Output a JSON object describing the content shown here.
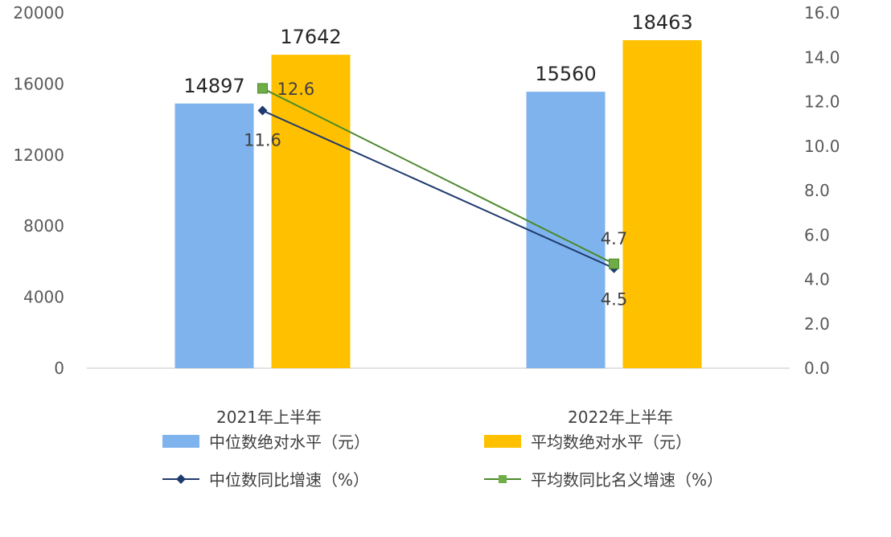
{
  "chart_data": {
    "type": "bar",
    "title": "",
    "categories": [
      "2021年上半年",
      "2022年上半年"
    ],
    "y_left": {
      "min": 0,
      "max": 20000,
      "ticks": [
        "0",
        "4000",
        "8000",
        "12000",
        "16000",
        "20000"
      ]
    },
    "y_right": {
      "min": 0,
      "max": 16,
      "ticks": [
        "0.0",
        "2.0",
        "4.0",
        "6.0",
        "8.0",
        "10.0",
        "12.0",
        "14.0",
        "16.0"
      ]
    },
    "grid": false,
    "legend_position": "bottom",
    "bar_series": [
      {
        "name": "中位数绝对水平（元）",
        "color": "#7FB3EE",
        "values": [
          14897,
          15560
        ],
        "labels": [
          "14897",
          "15560"
        ]
      },
      {
        "name": "平均数绝对水平（元）",
        "color": "#FFC000",
        "values": [
          17642,
          18463
        ],
        "labels": [
          "17642",
          "18463"
        ]
      }
    ],
    "line_series": [
      {
        "name": "中位数同比增速（%）",
        "color": "#1F3A6E",
        "marker": "diamond",
        "values": [
          11.6,
          4.5
        ],
        "labels": [
          "11.6",
          "4.5"
        ]
      },
      {
        "name": "平均数同比名义增速（%）",
        "color": "#4A8A2A",
        "marker_color": "#70AD47",
        "marker": "square",
        "values": [
          12.6,
          4.7
        ],
        "labels": [
          "12.6",
          "4.7"
        ]
      }
    ]
  }
}
